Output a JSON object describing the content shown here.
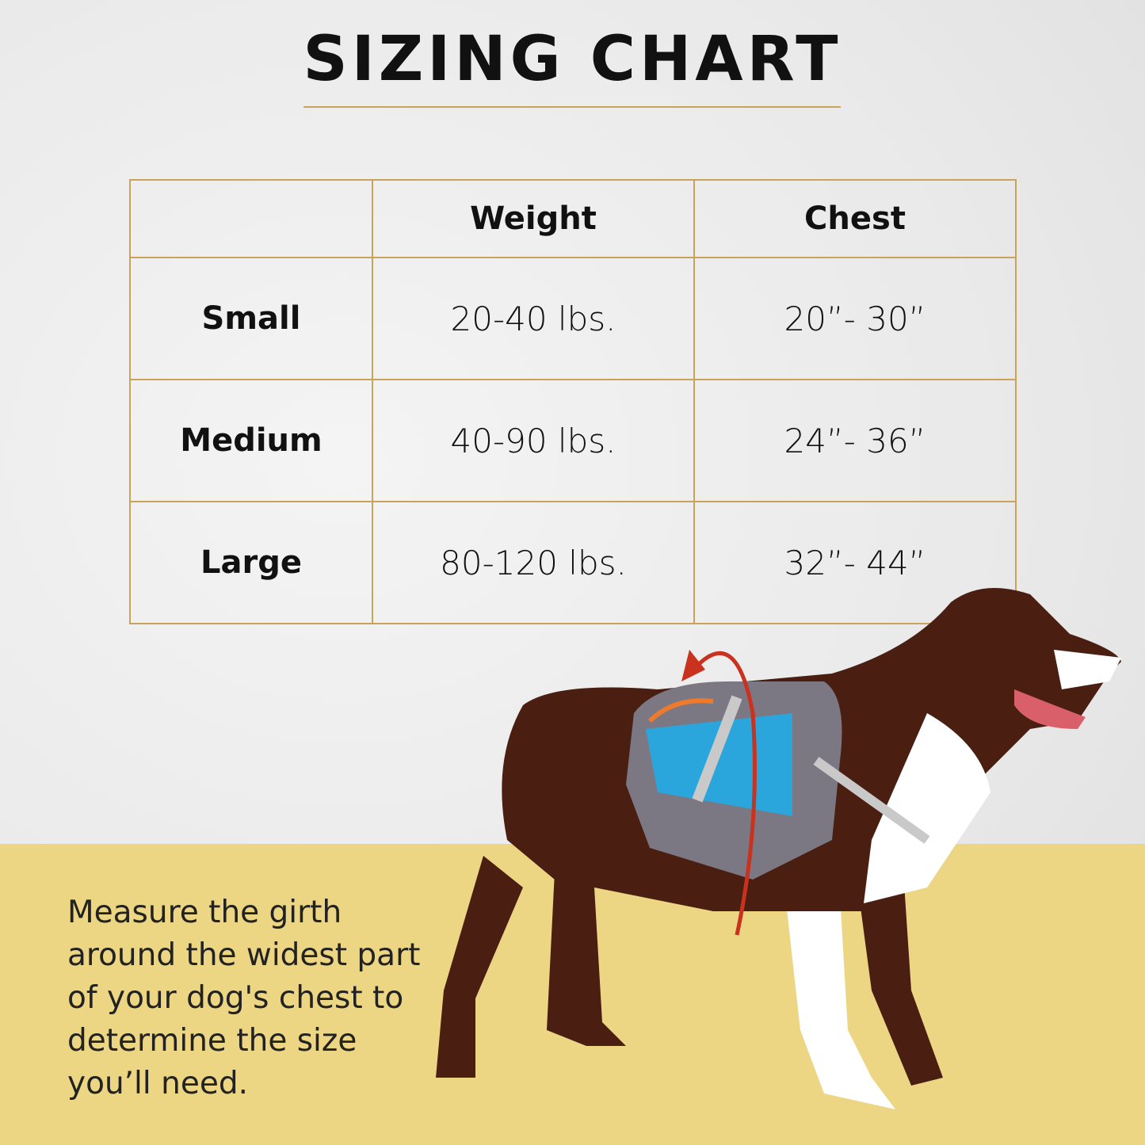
{
  "title": "SIZING CHART",
  "table": {
    "headers": [
      "",
      "Weight",
      "Chest"
    ],
    "rows": [
      {
        "size": "Small",
        "weight": "20-40 lbs.",
        "chest": "20”- 30”"
      },
      {
        "size": "Medium",
        "weight": "40-90 lbs.",
        "chest": "24”- 36”"
      },
      {
        "size": "Large",
        "weight": "80-120 lbs.",
        "chest": "32”- 44”"
      }
    ]
  },
  "note": "Measure the girth around the widest part of your dog's chest to determine the size you’ll need.",
  "colors": {
    "accent_gold": "#c9a35a",
    "band_yellow": "#ecd684",
    "arrow_red": "#c8321e",
    "pack_blue": "#2aa6dc"
  }
}
